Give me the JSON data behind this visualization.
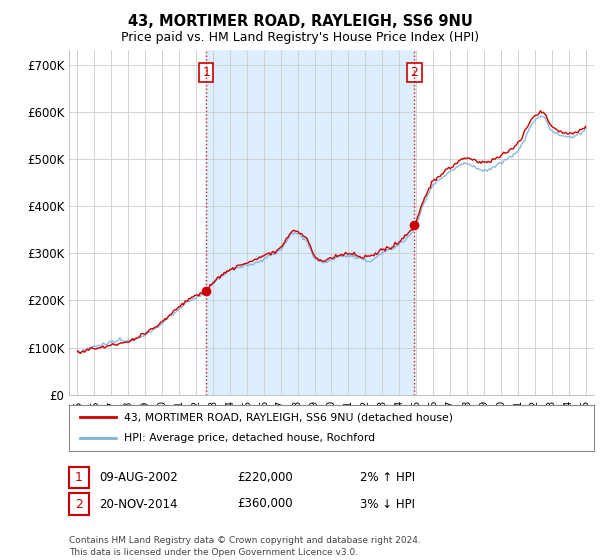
{
  "title": "43, MORTIMER ROAD, RAYLEIGH, SS6 9NU",
  "subtitle": "Price paid vs. HM Land Registry's House Price Index (HPI)",
  "ylim": [
    0,
    730000
  ],
  "yticks": [
    0,
    100000,
    200000,
    300000,
    400000,
    500000,
    600000,
    700000
  ],
  "ytick_labels": [
    "£0",
    "£100K",
    "£200K",
    "£300K",
    "£400K",
    "£500K",
    "£600K",
    "£700K"
  ],
  "hpi_color": "#7eb3d8",
  "price_color": "#cc0000",
  "marker_color": "#cc0000",
  "vline_color": "#cc0000",
  "annotation_box_color": "#cc0000",
  "shade_color": "#ddeeff",
  "background_color": "#ffffff",
  "grid_color": "#cccccc",
  "legend_label_price": "43, MORTIMER ROAD, RAYLEIGH, SS6 9NU (detached house)",
  "legend_label_hpi": "HPI: Average price, detached house, Rochford",
  "sale1_label": "1",
  "sale1_date": "09-AUG-2002",
  "sale1_price": "£220,000",
  "sale1_hpi": "2% ↑ HPI",
  "sale1_year": 2002.6,
  "sale1_value": 220000,
  "sale2_label": "2",
  "sale2_date": "20-NOV-2014",
  "sale2_price": "£360,000",
  "sale2_hpi": "3% ↓ HPI",
  "sale2_year": 2014.9,
  "sale2_value": 360000,
  "footer": "Contains HM Land Registry data © Crown copyright and database right 2024.\nThis data is licensed under the Open Government Licence v3.0.",
  "xlim_start": 1994.5,
  "xlim_end": 2025.5,
  "xticks": [
    1995,
    1996,
    1997,
    1998,
    1999,
    2000,
    2001,
    2002,
    2003,
    2004,
    2005,
    2006,
    2007,
    2008,
    2009,
    2010,
    2011,
    2012,
    2013,
    2014,
    2015,
    2016,
    2017,
    2018,
    2019,
    2020,
    2021,
    2022,
    2023,
    2024,
    2025
  ]
}
